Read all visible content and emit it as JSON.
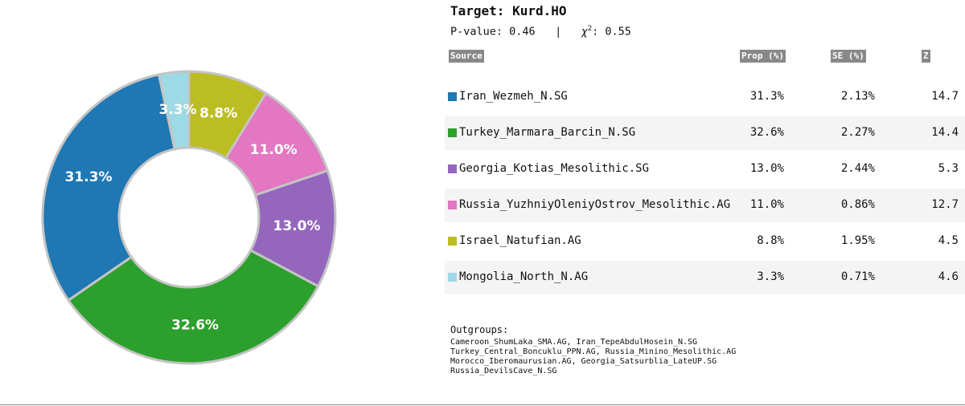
{
  "target_label": "Target: Kurd.HO",
  "pvalue_text": "P-value: 0.46",
  "separator": "|",
  "chisq_label": "χ",
  "chisq_sup": "2",
  "chisq_value": ": 0.55",
  "headers": {
    "source": "Source",
    "prop": "Prop (%)",
    "se": "SE (%)",
    "z": "Z"
  },
  "rows": [
    {
      "source": "Iran_Wezmeh_N.SG",
      "prop": "31.3%",
      "se": "2.13%",
      "z": "14.7",
      "color": "#1f77b4"
    },
    {
      "source": "Turkey_Marmara_Barcin_N.SG",
      "prop": "32.6%",
      "se": "2.27%",
      "z": "14.4",
      "color": "#2ca02c"
    },
    {
      "source": "Georgia_Kotias_Mesolithic.SG",
      "prop": "13.0%",
      "se": "2.44%",
      "z": "5.3",
      "color": "#9467bd"
    },
    {
      "source": "Russia_YuzhniyOleniyOstrov_Mesolithic.AG",
      "prop": "11.0%",
      "se": "0.86%",
      "z": "12.7",
      "color": "#e377c2"
    },
    {
      "source": "Israel_Natufian.AG",
      "prop": "8.8%",
      "se": "1.95%",
      "z": "4.5",
      "color": "#bcbd22"
    },
    {
      "source": "Mongolia_North_N.AG",
      "prop": "3.3%",
      "se": "0.71%",
      "z": "4.6",
      "color": "#9edae5"
    }
  ],
  "outgroups_label": "Outgroups:",
  "outgroups_lines": [
    "Cameroon_ShumLaka_SMA.AG, Iran_TepeAbdulHosein_N.SG",
    "Turkey_Central_Boncuklu_PPN.AG, Russia_Minino_Mesolithic.AG",
    "Morocco_Iberomaurusian.AG, Georgia_Satsurblia_LateUP.SG",
    "Russia_DevilsCave_N.SG"
  ],
  "chart_data": {
    "type": "pie",
    "donut": true,
    "start": "top",
    "direction": "counterclockwise",
    "categories": [
      "Mongolia_North_N.AG",
      "Iran_Wezmeh_N.SG",
      "Turkey_Marmara_Barcin_N.SG",
      "Georgia_Kotias_Mesolithic.SG",
      "Russia_YuzhniyOleniyOstrov_Mesolithic.AG",
      "Israel_Natufian.AG"
    ],
    "values": [
      3.3,
      31.3,
      32.6,
      13.0,
      11.0,
      8.8
    ],
    "labels": [
      "3.3%",
      "31.3%",
      "32.6%",
      "13.0%",
      "11.0%",
      "8.8%"
    ],
    "colors": [
      "#9edae5",
      "#1f77b4",
      "#2ca02c",
      "#9467bd",
      "#e377c2",
      "#bcbd22"
    ]
  }
}
